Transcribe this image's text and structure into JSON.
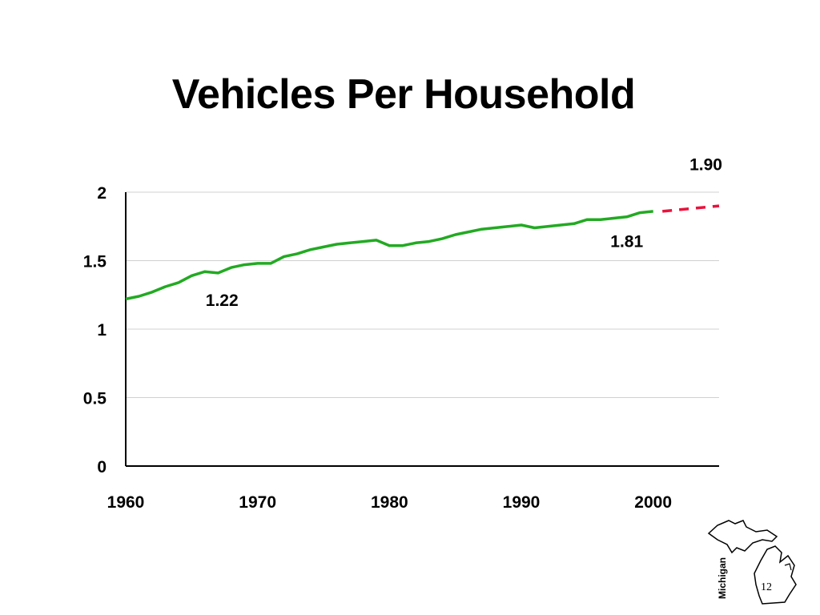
{
  "slide": {
    "title": "Vehicles Per Household",
    "logo_text": "Michigan",
    "page_number": "12"
  },
  "colors": {
    "actual_line": "#22aa22",
    "projection_line": "#e8133c",
    "gridline": "#d0d0d0",
    "axis": "#000000"
  },
  "chart_data": {
    "type": "line",
    "title": "Vehicles Per Household",
    "xlabel": "",
    "ylabel": "",
    "xlim": [
      1960,
      2005
    ],
    "ylim": [
      0,
      2
    ],
    "x_ticks": [
      1960,
      1970,
      1980,
      1990,
      2000
    ],
    "x_tick_labels": [
      "1960",
      "1970",
      "1980",
      "1990",
      "2000"
    ],
    "y_ticks": [
      0,
      0.5,
      1,
      1.5,
      2
    ],
    "y_tick_labels": [
      "0",
      "0.5",
      "1",
      "1.5",
      "2"
    ],
    "grid": "horizontal",
    "legend": "none",
    "series": [
      {
        "style": "solid",
        "x": [
          1960,
          1961,
          1962,
          1963,
          1964,
          1965,
          1966,
          1967,
          1968,
          1969,
          1970,
          1971,
          1972,
          1973,
          1974,
          1975,
          1976,
          1977,
          1978,
          1979,
          1980,
          1981,
          1982,
          1983,
          1984,
          1985,
          1986,
          1987,
          1988,
          1989,
          1990,
          1991,
          1992,
          1993,
          1994,
          1995,
          1996,
          1997,
          1998,
          1999,
          2000
        ],
        "y": [
          1.22,
          1.24,
          1.27,
          1.31,
          1.34,
          1.39,
          1.42,
          1.41,
          1.45,
          1.47,
          1.48,
          1.48,
          1.53,
          1.55,
          1.58,
          1.6,
          1.62,
          1.63,
          1.64,
          1.65,
          1.61,
          1.61,
          1.63,
          1.64,
          1.66,
          1.69,
          1.71,
          1.73,
          1.74,
          1.75,
          1.76,
          1.74,
          1.75,
          1.76,
          1.77,
          1.8,
          1.8,
          1.81,
          1.82,
          1.85,
          1.86
        ]
      },
      {
        "style": "dashed",
        "x": [
          2000.7,
          2005
        ],
        "y": [
          1.86,
          1.9
        ]
      }
    ],
    "annotations": [
      {
        "text": "1.22",
        "x": 1967.3,
        "y": 1.17
      },
      {
        "text": "1.81",
        "x": 1998.0,
        "y": 1.6
      },
      {
        "text": "1.90",
        "x": 2004.0,
        "y": 2.16
      }
    ]
  }
}
